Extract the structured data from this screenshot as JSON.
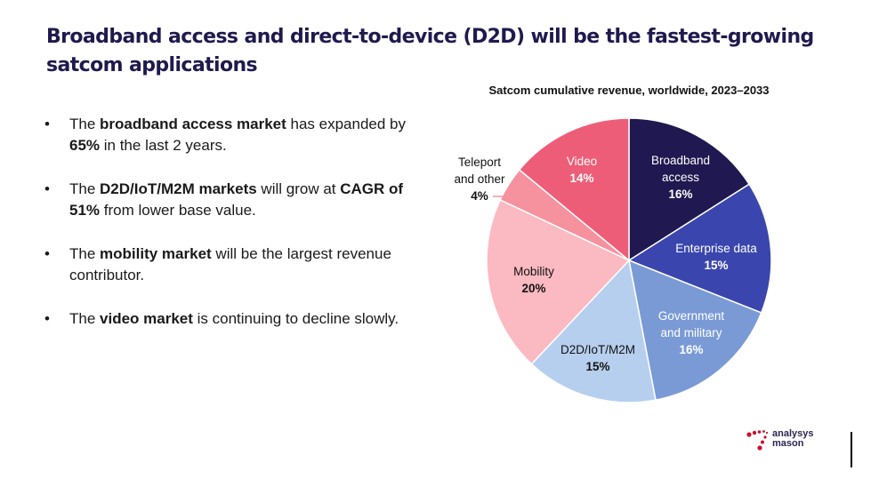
{
  "slide": {
    "title": "Broadband access and direct-to-device (D2D) will be the fastest-growing satcom applications",
    "bullets": [
      [
        {
          "t": "The ",
          "b": false
        },
        {
          "t": "broadband access market",
          "b": true
        },
        {
          "t": " has expanded by ",
          "b": false
        },
        {
          "t": "65%",
          "b": true
        },
        {
          "t": " in the last 2 years.",
          "b": false
        }
      ],
      [
        {
          "t": "The ",
          "b": false
        },
        {
          "t": "D2D/IoT/M2M markets",
          "b": true
        },
        {
          "t": " will grow at ",
          "b": false
        },
        {
          "t": "CAGR of 51%",
          "b": true
        },
        {
          "t": " from lower base value.",
          "b": false
        }
      ],
      [
        {
          "t": "The ",
          "b": false
        },
        {
          "t": "mobility market",
          "b": true
        },
        {
          "t": " will be the largest revenue contributor.",
          "b": false
        }
      ],
      [
        {
          "t": "The ",
          "b": false
        },
        {
          "t": "video market",
          "b": true
        },
        {
          "t": " is continuing to decline slowly.",
          "b": false
        }
      ]
    ],
    "bullet_glyph": "•",
    "logo": {
      "line1": "analysys",
      "line2": "mason",
      "icon": "dots-logo-icon",
      "color": "#c8102e"
    }
  },
  "chart_data": {
    "type": "pie",
    "title": "Satcom cumulative revenue, worldwide, 2023–2033",
    "start": "12 o'clock",
    "direction": "clockwise",
    "slices": [
      {
        "label": [
          "Broadband",
          "access"
        ],
        "value": 16,
        "pct_label": "16%",
        "color": "#201850",
        "text_color": "#ffffff"
      },
      {
        "label": [
          "Enterprise data"
        ],
        "value": 15,
        "pct_label": "15%",
        "color": "#3a46ad",
        "text_color": "#ffffff"
      },
      {
        "label": [
          "Government",
          "and military"
        ],
        "value": 16,
        "pct_label": "16%",
        "color": "#7a9ad6",
        "text_color": "#ffffff"
      },
      {
        "label": [
          "D2D/IoT/M2M"
        ],
        "value": 15,
        "pct_label": "15%",
        "color": "#b7cfee",
        "text_color": "#111111"
      },
      {
        "label": [
          "Mobility"
        ],
        "value": 20,
        "pct_label": "20%",
        "color": "#fbb9c2",
        "text_color": "#111111"
      },
      {
        "label": [
          "Teleport",
          "and other"
        ],
        "value": 4,
        "pct_label": "4%",
        "color": "#f6919e",
        "text_color": "#111111",
        "outside": true
      },
      {
        "label": [
          "Video"
        ],
        "value": 14,
        "pct_label": "14%",
        "color": "#ee5d77",
        "text_color": "#ffffff"
      }
    ]
  }
}
